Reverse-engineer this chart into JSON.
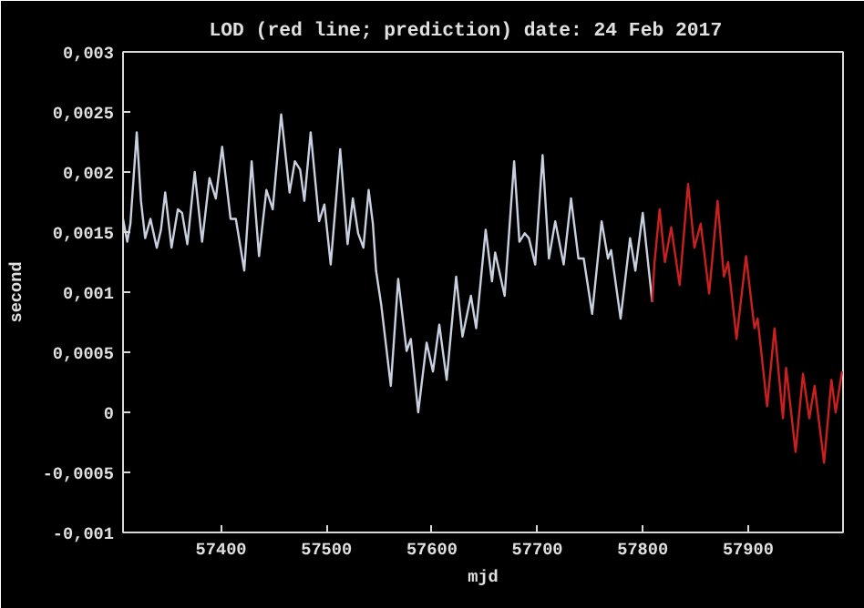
{
  "chart_data": {
    "type": "line",
    "title": "LOD (red line; prediction)    date: 24 Feb 2017",
    "xlabel": "mjd",
    "ylabel": "second",
    "xlim": [
      57307,
      57990
    ],
    "xticks": [
      57400,
      57500,
      57600,
      57700,
      57800,
      57900
    ],
    "ylim": [
      -0.001,
      0.003
    ],
    "yticks": [
      {
        "value": -0.001,
        "label": "-0,001"
      },
      {
        "value": -0.0005,
        "label": "-0,0005"
      },
      {
        "value": 0,
        "label": "0"
      },
      {
        "value": 0.0005,
        "label": "0,0005"
      },
      {
        "value": 0.001,
        "label": "0,001"
      },
      {
        "value": 0.0015,
        "label": "0,0015"
      },
      {
        "value": 0.002,
        "label": "0,002"
      },
      {
        "value": 0.0025,
        "label": "0,0025"
      },
      {
        "value": 0.003,
        "label": "0,003"
      }
    ],
    "grid": false,
    "line_style": "solid",
    "series": [
      {
        "color": "#c8d0e0",
        "x": [
          57307,
          57311,
          57314,
          57320,
          57324,
          57328,
          57333,
          57339,
          57343,
          57347,
          57353,
          57359,
          57363,
          57368,
          57375,
          57382,
          57389,
          57395,
          57401,
          57409,
          57414,
          57422,
          57429,
          57436,
          57443,
          57449,
          57457,
          57465,
          57470,
          57475,
          57479,
          57485,
          57493,
          57498,
          57504,
          57513,
          57520,
          57525,
          57530,
          57535,
          57540,
          57544,
          57547,
          57552,
          57561,
          57568,
          57576,
          57580,
          57587,
          57595,
          57601,
          57607,
          57614,
          57623,
          57629,
          57637,
          57642,
          57651,
          57657,
          57660,
          57669,
          57678,
          57683,
          57688,
          57692,
          57698,
          57705,
          57711,
          57717,
          57725,
          57732,
          57739,
          57744,
          57752,
          57761,
          57767,
          57770,
          57779,
          57788,
          57793,
          57800,
          57809
        ],
        "values": [
          0.00161,
          0.00142,
          0.00157,
          0.00233,
          0.00176,
          0.00145,
          0.00161,
          0.00137,
          0.00152,
          0.00183,
          0.00137,
          0.00169,
          0.00166,
          0.0014,
          0.002,
          0.00142,
          0.00195,
          0.00178,
          0.00221,
          0.00161,
          0.00161,
          0.00118,
          0.00209,
          0.0013,
          0.00185,
          0.00169,
          0.00248,
          0.00183,
          0.00209,
          0.00202,
          0.00176,
          0.00233,
          0.00159,
          0.00173,
          0.00123,
          0.00219,
          0.0014,
          0.00178,
          0.00149,
          0.00137,
          0.00185,
          0.00157,
          0.00118,
          0.00089,
          0.00022,
          0.00111,
          0.00051,
          0.00061,
          0,
          0.00058,
          0.00034,
          0.00073,
          0.00027,
          0.00113,
          0.00063,
          0.00097,
          0.0007,
          0.00152,
          0.00109,
          0.00133,
          0.00097,
          0.00209,
          0.00142,
          0.00149,
          0.00145,
          0.00123,
          0.00214,
          0.00128,
          0.00159,
          0.00123,
          0.00178,
          0.00128,
          0.00128,
          0.00082,
          0.00159,
          0.00128,
          0.00135,
          0.00078,
          0.00145,
          0.00118,
          0.00166,
          0.00092
        ]
      },
      {
        "color": "#cc2020",
        "x": [
          57809,
          57811,
          57816,
          57821,
          57827,
          57835,
          57843,
          57849,
          57855,
          57863,
          57871,
          57877,
          57881,
          57889,
          57898,
          57906,
          57909,
          57918,
          57925,
          57933,
          57936,
          57945,
          57952,
          57958,
          57963,
          57972,
          57979,
          57983,
          57989
        ],
        "values": [
          0.00092,
          0.00123,
          0.00169,
          0.00125,
          0.00154,
          0.00106,
          0.0019,
          0.00137,
          0.00157,
          0.00099,
          0.00176,
          0.00113,
          0.00125,
          0.00061,
          0.0013,
          0.0007,
          0.00078,
          5e-05,
          0.0007,
          -5e-05,
          0.00037,
          -0.00033,
          0.00032,
          -5e-05,
          0.00022,
          -0.00042,
          0.00027,
          0,
          0.00034
        ]
      }
    ]
  }
}
